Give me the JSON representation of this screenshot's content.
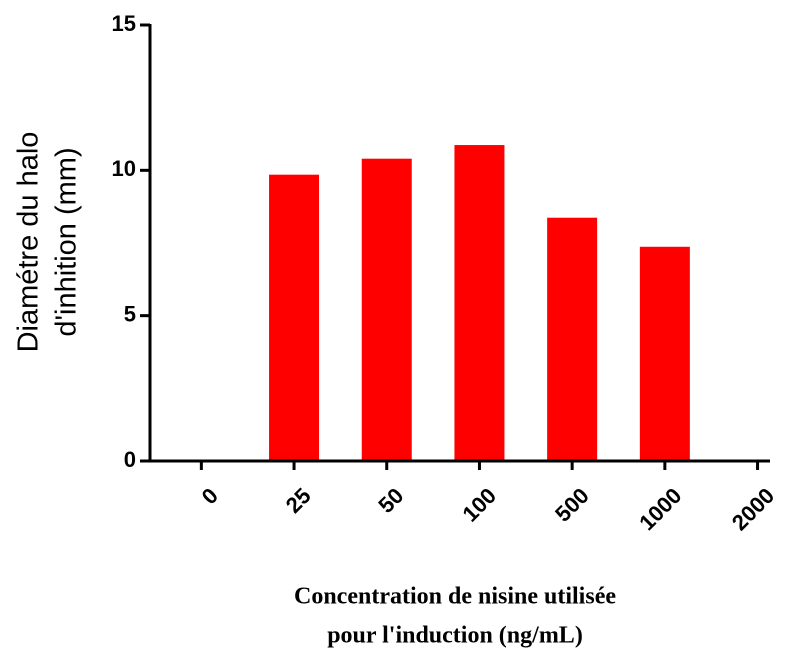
{
  "chart_data": {
    "type": "bar",
    "categories": [
      "0",
      "25",
      "50",
      "100",
      "500",
      "1000",
      "2000"
    ],
    "values": [
      0,
      9.85,
      10.4,
      10.87,
      8.37,
      7.37,
      0
    ],
    "color": "#ff0000",
    "ylim": [
      0,
      15
    ],
    "yticks": [
      0,
      5,
      10,
      15
    ],
    "ylabel": [
      "Diamétre du halo",
      "d'inhition (mm)"
    ],
    "xlabel": [
      "Concentration de nisine utilisée",
      "pour l'induction (ng/mL)"
    ]
  }
}
